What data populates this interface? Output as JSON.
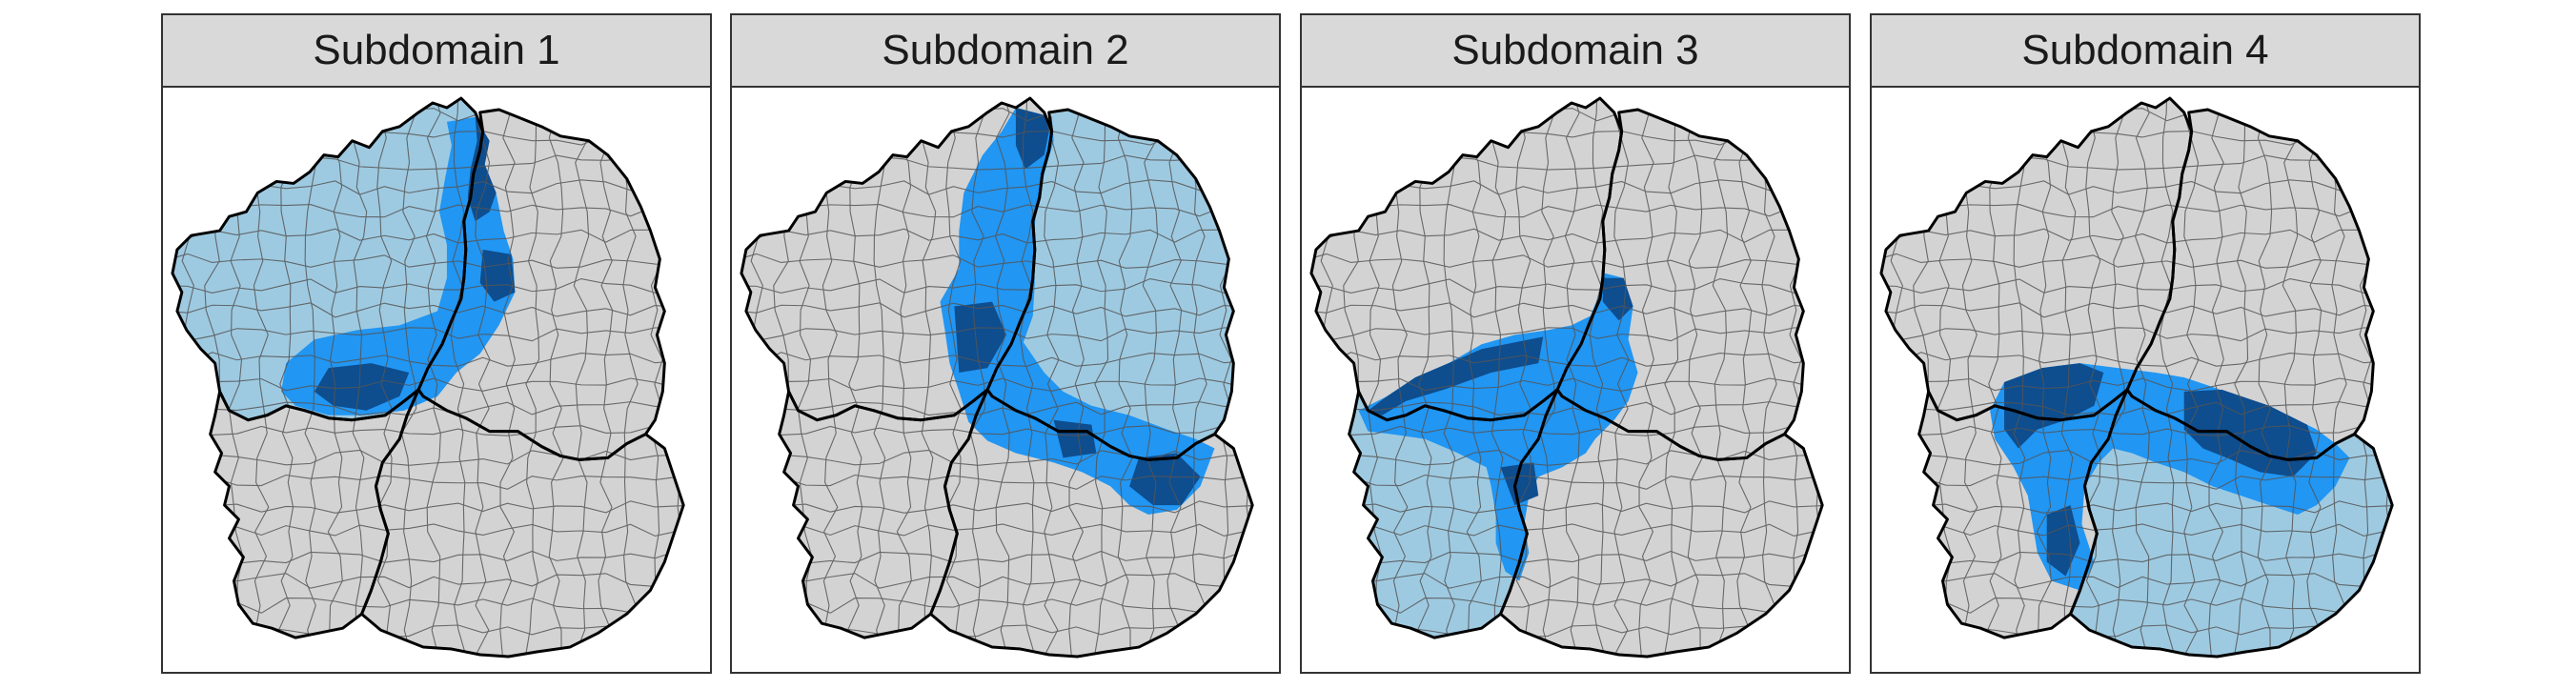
{
  "colors": {
    "background": "#d3d3d3",
    "light": "#9ecae1",
    "mid": "#2196f3",
    "dark": "#0e4d8e",
    "outline": "#000000",
    "borders": "#555555"
  },
  "panels": [
    {
      "title": "Subdomain 1",
      "light": "nw",
      "mid": "mid_1",
      "dark": "dark_1"
    },
    {
      "title": "Subdomain 2",
      "light": "ne",
      "mid": "mid_2",
      "dark": "dark_2"
    },
    {
      "title": "Subdomain 3",
      "light": "sw",
      "mid": "mid_3",
      "dark": "dark_3"
    },
    {
      "title": "Subdomain 4",
      "light": "se",
      "mid": "mid_4",
      "dark": "dark_4"
    }
  ]
}
